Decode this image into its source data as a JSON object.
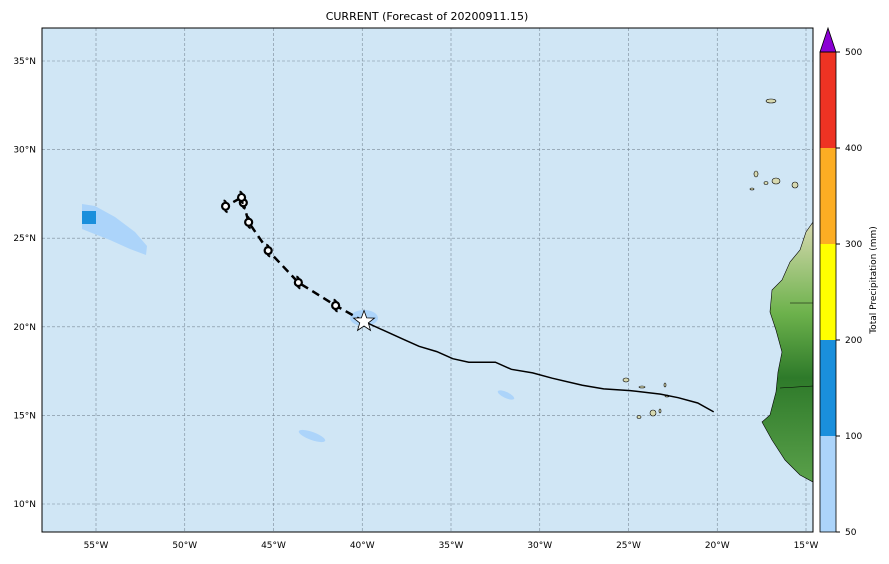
{
  "title": "CURRENT (Forecast of 20200911.15)",
  "lat_labels": [
    "35°N",
    "30°N",
    "25°N",
    "20°N",
    "15°N",
    "10°N"
  ],
  "lat_values": [
    35,
    30,
    25,
    20,
    15,
    10
  ],
  "lon_labels": [
    "55°W",
    "50°W",
    "45°W",
    "40°W",
    "35°W",
    "30°W",
    "25°W",
    "20°W",
    "15°W"
  ],
  "lon_values": [
    -55,
    -50,
    -45,
    -40,
    -35,
    -30,
    -25,
    -20,
    -15
  ],
  "colorbar": {
    "label": "Total Precipitation (mm)",
    "ticks": [
      "50",
      "100",
      "200",
      "300",
      "400",
      "500"
    ],
    "colors": [
      "#acd4fa",
      "#1a8fdc",
      "#ffff00",
      "#fcad23",
      "#ee3323"
    ],
    "extend_color": "#8a00d4"
  },
  "colors": {
    "ocean": "#d0e6f5",
    "land_light": "#d7d9b0",
    "land_dark": "#2e7a2a"
  },
  "track": {
    "past": [
      [
        -39.9,
        20.3
      ],
      [
        -38.8,
        19.8
      ],
      [
        -37.7,
        19.3
      ],
      [
        -36.8,
        18.9
      ],
      [
        -35.8,
        18.6
      ],
      [
        -34.9,
        18.2
      ],
      [
        -34.0,
        18.0
      ],
      [
        -32.5,
        18.0
      ],
      [
        -31.6,
        17.6
      ],
      [
        -30.4,
        17.4
      ],
      [
        -29.3,
        17.1
      ],
      [
        -27.6,
        16.7
      ],
      [
        -26.4,
        16.5
      ],
      [
        -24.9,
        16.4
      ],
      [
        -23.2,
        16.2
      ],
      [
        -22.2,
        16.0
      ],
      [
        -21.1,
        15.7
      ],
      [
        -20.2,
        15.2
      ]
    ],
    "forecast": [
      [
        -39.9,
        20.3
      ],
      [
        -41.5,
        21.2
      ],
      [
        -43.6,
        22.5
      ],
      [
        -45.3,
        24.3
      ],
      [
        -46.4,
        25.9
      ],
      [
        -46.7,
        27.0
      ],
      [
        -46.8,
        27.3
      ],
      [
        -47.7,
        26.8
      ]
    ],
    "current": [
      -39.9,
      20.3
    ]
  }
}
